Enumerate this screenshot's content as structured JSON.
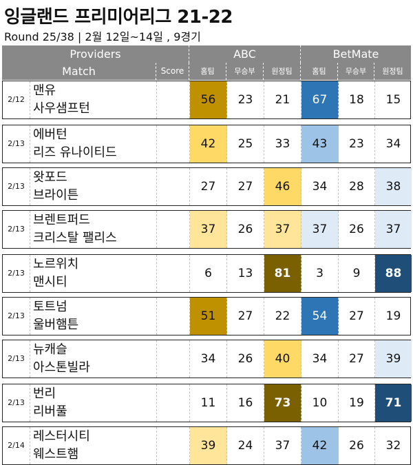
{
  "title": "잉글랜드 프리미어리그 21-22",
  "subtitle": "Round 25/38 | 2월 12일~14일 , 9경기",
  "header": {
    "providers": "Providers",
    "abc": "ABC",
    "betmate": "BetMate",
    "match": "Match",
    "score": "Score",
    "home": "홈팀",
    "draw": "무승부",
    "away": "원정팀"
  },
  "colors": {
    "header_bg": "#888888",
    "gold_dark": "#7a6000",
    "gold_mid": "#bf9000",
    "gold_light": "#ffd966",
    "gold_pale": "#ffe599",
    "gold_faint": "#fff2cc",
    "blue_dark": "#1f4e79",
    "blue_mid": "#2e75b6",
    "blue_light": "#9dc3e6",
    "blue_pale": "#deebf7"
  },
  "matches": [
    {
      "date": "2/12",
      "home": "맨유",
      "away": "사우샘프턴",
      "score": "",
      "abc": [
        56,
        23,
        21
      ],
      "bet": [
        67,
        18,
        15
      ]
    },
    {
      "date": "2/13",
      "home": "에버턴",
      "away": "리즈 유나이티드",
      "score": "",
      "abc": [
        42,
        25,
        33
      ],
      "bet": [
        43,
        23,
        34
      ]
    },
    {
      "date": "2/13",
      "home": "왓포드",
      "away": "브라이튼",
      "score": "",
      "abc": [
        27,
        27,
        46
      ],
      "bet": [
        34,
        28,
        38
      ]
    },
    {
      "date": "2/13",
      "home": "브렌트퍼드",
      "away": "크리스탈 팰리스",
      "score": "",
      "abc": [
        37,
        26,
        37
      ],
      "bet": [
        37,
        26,
        37
      ]
    },
    {
      "date": "2/13",
      "home": "노르위치",
      "away": "맨시티",
      "score": "",
      "abc": [
        6,
        13,
        81
      ],
      "bet": [
        3,
        9,
        88
      ]
    },
    {
      "date": "2/13",
      "home": "토트넘",
      "away": "울버햄튼",
      "score": "",
      "abc": [
        51,
        27,
        22
      ],
      "bet": [
        54,
        27,
        19
      ]
    },
    {
      "date": "2/13",
      "home": "뉴캐슬",
      "away": "아스톤빌라",
      "score": "",
      "abc": [
        34,
        26,
        40
      ],
      "bet": [
        34,
        27,
        39
      ]
    },
    {
      "date": "2/13",
      "home": "번리",
      "away": "리버풀",
      "score": "",
      "abc": [
        11,
        16,
        73
      ],
      "bet": [
        10,
        19,
        71
      ]
    },
    {
      "date": "2/14",
      "home": "레스터시티",
      "away": "웨스트햄",
      "score": "",
      "abc": [
        39,
        24,
        37
      ],
      "bet": [
        42,
        26,
        32
      ]
    }
  ]
}
